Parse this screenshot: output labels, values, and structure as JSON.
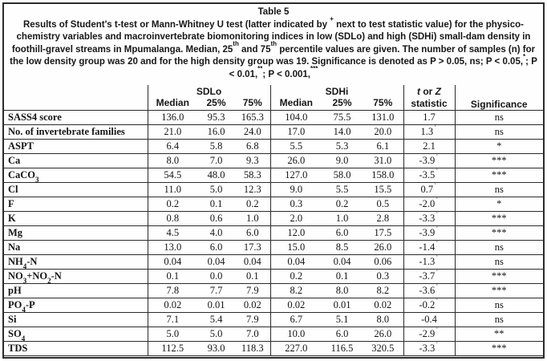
{
  "page": {
    "background": "#ffffff",
    "border_color": "#2b2b2b",
    "text_color": "#1a1a1a"
  },
  "table": {
    "title": "Table 5",
    "caption": "Results of Student's t-test or Mann-Whitney U test (latter indicated by ^+^ next to test statistic value) for the physico-chemistry variables and macroinvertebrate biomonitoring indices in low (SDLo) and high (SDHi) small-dam density in foothill-gravel streams in Mpumalanga.  Median, 25^th^ and 75^th^ percentile values are given.  The number of samples (n) for the low density group was 20 and for the high density group was 19. Significance is denoted as P > 0.05, ns; P < 0.05,^*^; P < 0.01,^**^; P < 0.001,^***^",
    "header": {
      "group_low": "SDLo",
      "group_high": "SDHi",
      "subcolumns": [
        "Median",
        "25%",
        "75%"
      ],
      "stat_line1": "_t_ or _Z_",
      "stat_line2": "statistic",
      "significance": "Significance"
    },
    "rows": [
      {
        "label": "SASS4 score",
        "sdlo": [
          "136.0",
          "95.3",
          "165.3"
        ],
        "sdhi": [
          "104.0",
          "75.5",
          "131.0"
        ],
        "stat": "1.7",
        "sig": "ns"
      },
      {
        "label": "No. of invertebrate families",
        "sdlo": [
          "21.0",
          "16.0",
          "24.0"
        ],
        "sdhi": [
          "17.0",
          "14.0",
          "20.0"
        ],
        "stat": "1.3^+^",
        "sig": "ns"
      },
      {
        "label": "ASPT",
        "sdlo": [
          "6.4",
          "5.8",
          "6.8"
        ],
        "sdhi": [
          "5.5",
          "5.3",
          "6.1"
        ],
        "stat": "2.1",
        "sig": "*"
      },
      {
        "label": "Ca",
        "sdlo": [
          "8.0",
          "7.0",
          "9.3"
        ],
        "sdhi": [
          "26.0",
          "9.0",
          "31.0"
        ],
        "stat": "-3.9^+^",
        "sig": "***"
      },
      {
        "label": "CaCO~3~",
        "sdlo": [
          "54.5",
          "48.0",
          "58.3"
        ],
        "sdhi": [
          "127.0",
          "58.0",
          "158.0"
        ],
        "stat": "-3.5^+^",
        "sig": "***"
      },
      {
        "label": "Cl",
        "sdlo": [
          "11.0",
          "5.0",
          "12.3"
        ],
        "sdhi": [
          "9.0",
          "5.5",
          "15.5"
        ],
        "stat": "0.7^+^",
        "sig": "ns"
      },
      {
        "label": "F",
        "sdlo": [
          "0.2",
          "0.1",
          "0.2"
        ],
        "sdhi": [
          "0.3",
          "0.2",
          "0.5"
        ],
        "stat": "-2.0^+^",
        "sig": "*"
      },
      {
        "label": "K",
        "sdlo": [
          "0.8",
          "0.6",
          "1.0"
        ],
        "sdhi": [
          "2.0",
          "1.0",
          "2.8"
        ],
        "stat": "-3.3^+^",
        "sig": "***"
      },
      {
        "label": "Mg",
        "sdlo": [
          "4.5",
          "4.0",
          "6.0"
        ],
        "sdhi": [
          "12.0",
          "6.0",
          "17.5"
        ],
        "stat": "-3.9^+^",
        "sig": "***"
      },
      {
        "label": "Na",
        "sdlo": [
          "13.0",
          "6.0",
          "17.3"
        ],
        "sdhi": [
          "15.0",
          "8.5",
          "26.0"
        ],
        "stat": "-1.4^+^",
        "sig": "ns"
      },
      {
        "label": "NH~4~-N",
        "sdlo": [
          "0.04",
          "0.04",
          "0.04"
        ],
        "sdhi": [
          "0.04",
          "0.04",
          "0.06"
        ],
        "stat": "-1.3^+^",
        "sig": "ns"
      },
      {
        "label": "NO~3~+NO~2~-N",
        "sdlo": [
          "0.1",
          "0.0",
          "0.1"
        ],
        "sdhi": [
          "0.2",
          "0.1",
          "0.3"
        ],
        "stat": "-3.7^+^",
        "sig": "***"
      },
      {
        "label": "pH",
        "sdlo": [
          "7.8",
          "7.7",
          "7.9"
        ],
        "sdhi": [
          "8.2",
          "8.0",
          "8.2"
        ],
        "stat": "-3.6^+^",
        "sig": "***"
      },
      {
        "label": "PO~4~-P",
        "sdlo": [
          "0.02",
          "0.01",
          "0.02"
        ],
        "sdhi": [
          "0.02",
          "0.01",
          "0.02"
        ],
        "stat": "-0.2^+^",
        "sig": "ns"
      },
      {
        "label": "Si",
        "sdlo": [
          "7.1",
          "5.4",
          "7.9"
        ],
        "sdhi": [
          "6.7",
          "5.1",
          "8.0"
        ],
        "stat": "-0.4",
        "sig": "ns"
      },
      {
        "label": "SO~4~",
        "sdlo": [
          "5.0",
          "5.0",
          "7.0"
        ],
        "sdhi": [
          "10.0",
          "6.0",
          "26.0"
        ],
        "stat": "-2.9^+^",
        "sig": "**"
      },
      {
        "label": "TDS",
        "sdlo": [
          "112.5",
          "93.0",
          "118.3"
        ],
        "sdhi": [
          "227.0",
          "116.5",
          "320.5"
        ],
        "stat": "-3.3^+^",
        "sig": "***"
      }
    ]
  }
}
